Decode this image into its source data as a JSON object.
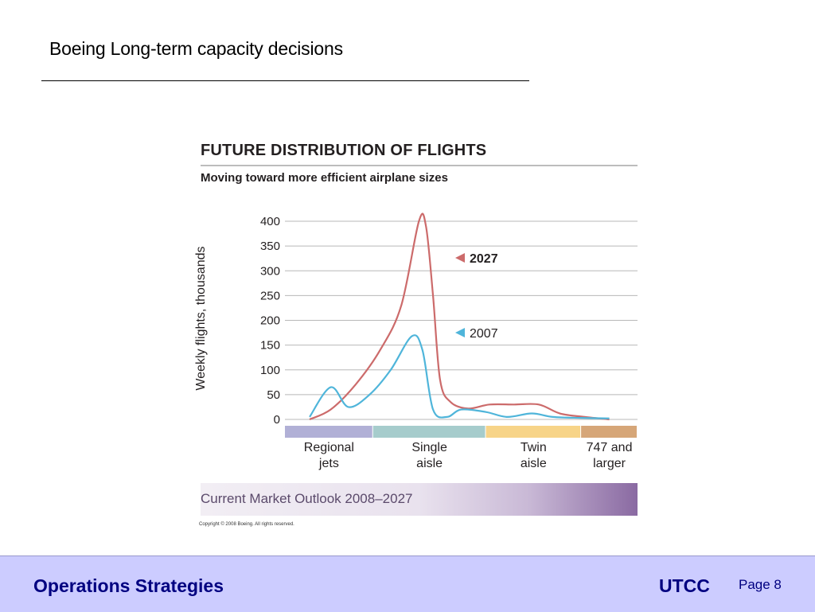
{
  "slide": {
    "title": "Boeing Long-term capacity decisions"
  },
  "footer": {
    "left": "Operations Strategies",
    "brand": "UTCC",
    "page": "Page 8"
  },
  "chart_data": {
    "type": "line",
    "title": "FUTURE DISTRIBUTION OF FLIGHTS",
    "subtitle": "Moving toward more efficient airplane sizes",
    "xlabel": "",
    "ylabel": "Weekly flights, thousands",
    "ylim": [
      0,
      400
    ],
    "yticks": [
      0,
      50,
      100,
      150,
      200,
      250,
      300,
      350,
      400
    ],
    "grid": true,
    "categories": [
      {
        "label": "Regional jets",
        "lines": [
          "Regional",
          "jets"
        ],
        "color": "#b1b0d6",
        "span": [
          0,
          0.25
        ]
      },
      {
        "label": "Single aisle",
        "lines": [
          "Single",
          "aisle"
        ],
        "color": "#a6cccc",
        "span": [
          0.25,
          0.57
        ]
      },
      {
        "label": "Twin aisle",
        "lines": [
          "Twin",
          "aisle"
        ],
        "color": "#f7d488",
        "span": [
          0.57,
          0.84
        ]
      },
      {
        "label": "747 and larger",
        "lines": [
          "747 and",
          "larger"
        ],
        "color": "#d6a678",
        "span": [
          0.84,
          1.0
        ]
      }
    ],
    "series": [
      {
        "name": "2027",
        "color": "#cc6b6b",
        "bold": true,
        "x": [
          0.07,
          0.13,
          0.2,
          0.27,
          0.33,
          0.38,
          0.4,
          0.42,
          0.44,
          0.47,
          0.52,
          0.58,
          0.65,
          0.72,
          0.78,
          0.85,
          0.92
        ],
        "values": [
          0,
          20,
          70,
          140,
          230,
          400,
          390,
          250,
          80,
          35,
          22,
          30,
          30,
          30,
          12,
          5,
          0
        ]
      },
      {
        "name": "2007",
        "color": "#4fb5da",
        "bold": false,
        "x": [
          0.07,
          0.13,
          0.18,
          0.24,
          0.3,
          0.36,
          0.39,
          0.42,
          0.46,
          0.5,
          0.57,
          0.63,
          0.7,
          0.76,
          0.84,
          0.92
        ],
        "values": [
          5,
          65,
          25,
          50,
          100,
          168,
          140,
          20,
          5,
          20,
          15,
          5,
          12,
          5,
          3,
          2
        ]
      }
    ],
    "footer_banner": "Current Market Outlook 2008–2027",
    "copyright": "Copyright © 2008 Boeing. All rights reserved."
  }
}
